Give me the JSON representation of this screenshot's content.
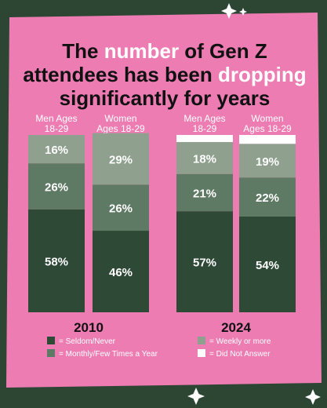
{
  "title": {
    "line1": [
      {
        "text": "The ",
        "highlight": false
      },
      {
        "text": "number",
        "highlight": true
      },
      {
        "text": " of Gen Z",
        "highlight": false
      }
    ],
    "line2": [
      {
        "text": "attendees has been ",
        "highlight": false
      },
      {
        "text": "dropping",
        "highlight": true
      }
    ],
    "line3": [
      {
        "text": "significantly for years",
        "highlight": false
      }
    ]
  },
  "colors": {
    "frame": "#2d4634",
    "panel": "#ec7cb2",
    "title_text": "#111111",
    "title_highlight": "#ffffff",
    "label_text": "#ffffff",
    "seldom": "#2e4a37",
    "monthly": "#5f7a64",
    "weekly": "#8fa18e",
    "no_answer": "#ffffff",
    "year_text": "#111111",
    "legend_text": "#ffffff"
  },
  "legend": [
    {
      "label": "= Seldom/Never",
      "series": "seldom"
    },
    {
      "label": "= Monthly/Few Times a Year",
      "series": "monthly"
    },
    {
      "label": "= Weekly or more",
      "series": "weekly"
    },
    {
      "label": "= Did Not Answer",
      "series": "no_answer"
    }
  ],
  "chart_data": {
    "type": "bar",
    "stacked": true,
    "groups": [
      {
        "year": "2010",
        "bars": [
          {
            "label": [
              "Men Ages",
              "18-29"
            ],
            "seldom": 58,
            "monthly": 26,
            "weekly": 16,
            "no_answer": 0
          },
          {
            "label": [
              "Women",
              "Ages 18-29"
            ],
            "seldom": 46,
            "monthly": 26,
            "weekly": 29,
            "no_answer": 0
          }
        ]
      },
      {
        "year": "2024",
        "bars": [
          {
            "label": [
              "Men Ages",
              "18-29"
            ],
            "seldom": 57,
            "monthly": 21,
            "weekly": 18,
            "no_answer": 4
          },
          {
            "label": [
              "Women",
              "Ages 18-29"
            ],
            "seldom": 54,
            "monthly": 22,
            "weekly": 19,
            "no_answer": 5
          }
        ]
      }
    ],
    "value_suffix": "%",
    "series_order_bottom_to_top": [
      "seldom",
      "monthly",
      "weekly",
      "no_answer"
    ],
    "ylim": [
      0,
      100
    ]
  }
}
